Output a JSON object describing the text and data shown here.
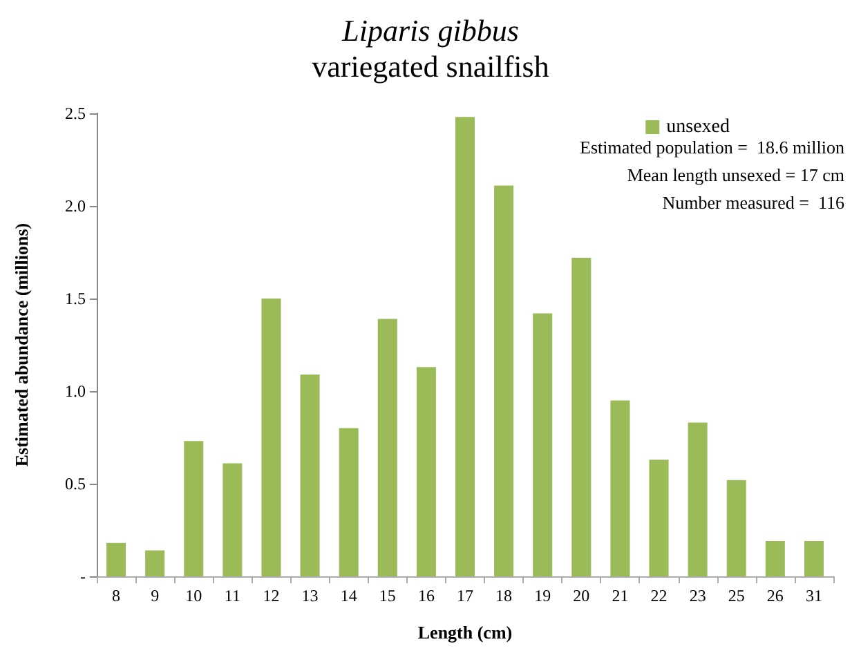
{
  "chart_data": {
    "type": "bar",
    "title": "Liparis gibbus",
    "subtitle": "variegated snailfish",
    "xlabel": "Length (cm)",
    "ylabel": "Estimated abundance (millions)",
    "categories": [
      "8",
      "9",
      "10",
      "11",
      "12",
      "13",
      "14",
      "15",
      "16",
      "17",
      "18",
      "19",
      "20",
      "21",
      "22",
      "23",
      "25",
      "26",
      "31"
    ],
    "series": [
      {
        "name": "unsexed",
        "color": "#9bbb59",
        "values": [
          0.18,
          0.14,
          0.73,
          0.61,
          1.5,
          1.09,
          0.8,
          1.39,
          1.13,
          2.48,
          2.11,
          1.42,
          1.72,
          0.95,
          0.63,
          0.83,
          0.52,
          0.19,
          0.19
        ]
      }
    ],
    "ylim": [
      0,
      2.5
    ],
    "yticks": [
      {
        "value": 0,
        "label": "-"
      },
      0.5,
      {
        "value": 1,
        "label": "1.0"
      },
      1.5,
      {
        "value": 2,
        "label": "2.0"
      },
      2.5
    ],
    "grid": false,
    "legend": "top right",
    "annotations": [
      "Estimated population =  18.6 million",
      "Mean length unsexed = 17 cm",
      "Number measured =  116"
    ]
  }
}
